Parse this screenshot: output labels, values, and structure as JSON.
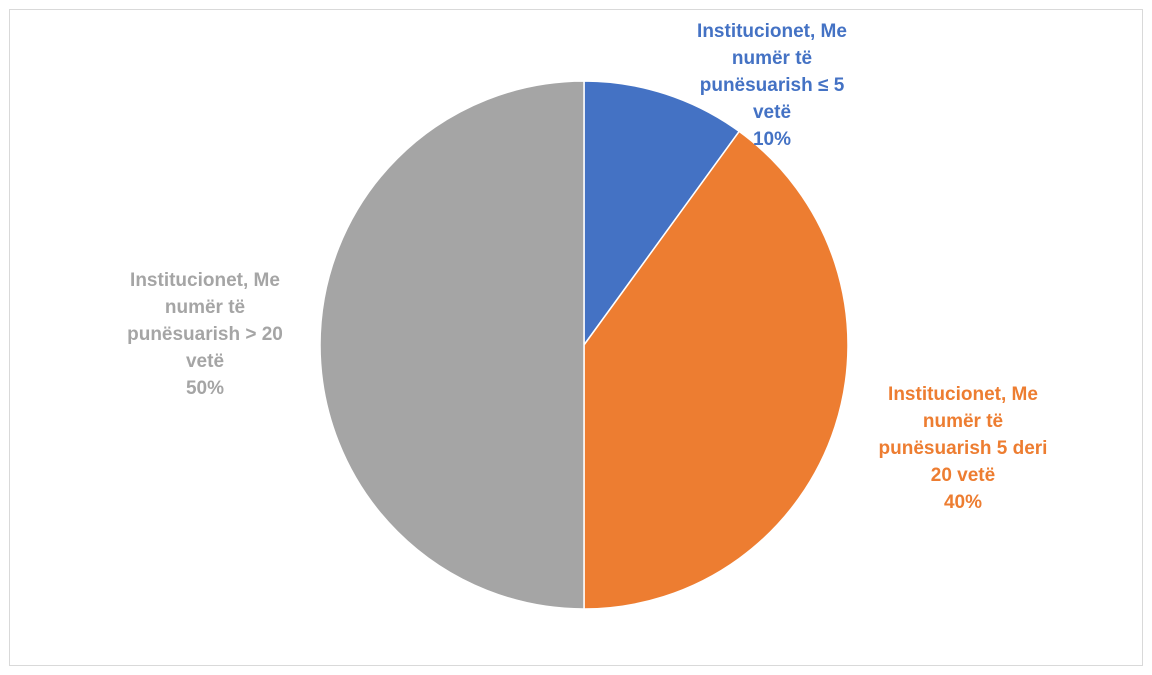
{
  "chart_data": {
    "type": "pie",
    "title": "",
    "start_angle_deg": 0,
    "direction": "clockwise",
    "slices": [
      {
        "label_lines": [
          "Institucionet, Me",
          "numër të",
          "punësuarish ≤ 5",
          "vetë"
        ],
        "value": 10,
        "percent_label": "10%",
        "color": "#4472C4"
      },
      {
        "label_lines": [
          "Institucionet, Me",
          "numër të",
          "punësuarish 5 deri",
          "20 vetë"
        ],
        "value": 40,
        "percent_label": "40%",
        "color": "#ED7D31"
      },
      {
        "label_lines": [
          "Institucionet, Me",
          "numër të",
          "punësuarish  > 20",
          "vetë"
        ],
        "value": 50,
        "percent_label": "50%",
        "color": "#A5A5A5"
      }
    ],
    "legend": "none",
    "data_labels": "category-and-percent"
  }
}
